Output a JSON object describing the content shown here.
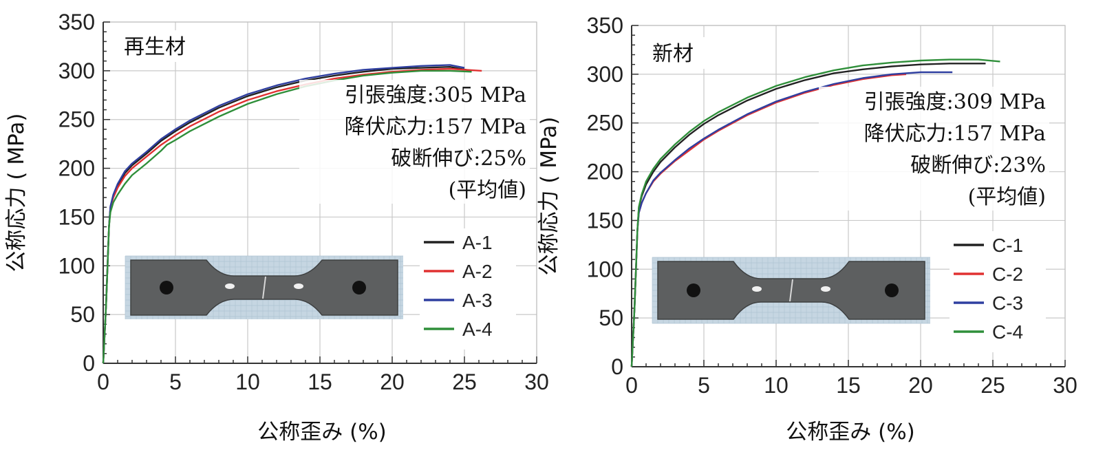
{
  "chart_data": [
    {
      "type": "line",
      "title": "再生材",
      "xlabel": "公称歪み (%)",
      "ylabel": "公称応力 ( MPa)",
      "xlim": [
        0,
        30
      ],
      "ylim": [
        0,
        350
      ],
      "xticks": [
        "0",
        "5",
        "10",
        "15",
        "20",
        "25",
        "30"
      ],
      "yticks": [
        "0",
        "50",
        "100",
        "150",
        "200",
        "250",
        "300",
        "350"
      ],
      "grid": true,
      "legend_position": "bottom-right",
      "annotations": [
        "引張強度:305 MPa",
        "降伏応力:157 MPa",
        "破断伸び:25%",
        "(平均値)"
      ],
      "inset": "specimen-photo",
      "series": [
        {
          "name": "A-1",
          "color": "#222222",
          "x": [
            0,
            0.2,
            0.3,
            0.4,
            0.5,
            0.7,
            1,
            1.5,
            2,
            3,
            4,
            5,
            6,
            8,
            10,
            12,
            14,
            16,
            18,
            20,
            22,
            24,
            25.5
          ],
          "y": [
            0,
            60,
            100,
            140,
            160,
            172,
            182,
            195,
            203,
            215,
            228,
            238,
            247,
            262,
            274,
            283,
            290,
            295,
            299,
            302,
            303,
            304,
            300
          ]
        },
        {
          "name": "A-2",
          "color": "#e03131",
          "x": [
            0,
            0.2,
            0.3,
            0.4,
            0.5,
            0.7,
            1,
            1.5,
            2,
            3,
            4,
            5,
            6,
            8,
            10,
            12,
            14,
            16,
            18,
            20,
            22,
            24,
            26.2
          ],
          "y": [
            0,
            60,
            100,
            140,
            160,
            170,
            180,
            192,
            200,
            212,
            224,
            234,
            243,
            258,
            270,
            279,
            286,
            292,
            296,
            299,
            301,
            302,
            300
          ]
        },
        {
          "name": "A-3",
          "color": "#2f3fa0",
          "x": [
            0,
            0.2,
            0.3,
            0.4,
            0.5,
            0.7,
            1,
            1.5,
            2,
            3,
            4,
            5,
            6,
            8,
            10,
            12,
            14,
            16,
            18,
            20,
            22,
            24,
            25
          ],
          "y": [
            0,
            60,
            100,
            140,
            161,
            173,
            184,
            197,
            205,
            217,
            230,
            240,
            249,
            264,
            276,
            285,
            292,
            297,
            301,
            303,
            305,
            306,
            303
          ]
        },
        {
          "name": "A-4",
          "color": "#2f8f3a",
          "x": [
            0,
            0.2,
            0.3,
            0.4,
            0.5,
            0.7,
            1,
            1.5,
            2,
            3,
            4,
            4.4,
            5,
            6,
            8,
            10,
            12,
            14,
            16,
            18,
            20,
            22,
            24,
            25.5
          ],
          "y": [
            0,
            60,
            100,
            140,
            155,
            165,
            173,
            184,
            193,
            205,
            218,
            224,
            229,
            238,
            253,
            266,
            276,
            284,
            290,
            295,
            298,
            300,
            300,
            299
          ]
        }
      ]
    },
    {
      "type": "line",
      "title": "新材",
      "xlabel": "公称歪み (%)",
      "ylabel": "公称応力 ( MPa)",
      "xlim": [
        0,
        30
      ],
      "ylim": [
        0,
        350
      ],
      "xticks": [
        "0",
        "5",
        "10",
        "15",
        "20",
        "25",
        "30"
      ],
      "yticks": [
        "0",
        "50",
        "100",
        "150",
        "200",
        "250",
        "300",
        "350"
      ],
      "grid": true,
      "legend_position": "bottom-right",
      "annotations": [
        "引張強度:309 MPa",
        "降伏応力:157 MPa",
        "破断伸び:23%",
        "(平均値)"
      ],
      "inset": "specimen-photo",
      "series": [
        {
          "name": "C-1",
          "color": "#222222",
          "x": [
            0,
            0.2,
            0.3,
            0.4,
            0.5,
            0.7,
            1,
            1.5,
            2,
            3,
            4,
            5,
            6,
            8,
            10,
            12,
            14,
            16,
            18,
            20,
            22,
            24.5
          ],
          "y": [
            0,
            60,
            100,
            140,
            163,
            175,
            187,
            200,
            210,
            225,
            238,
            249,
            258,
            273,
            285,
            294,
            301,
            305,
            308,
            310,
            311,
            311
          ]
        },
        {
          "name": "C-2",
          "color": "#e03131",
          "x": [
            0,
            0.2,
            0.3,
            0.4,
            0.5,
            0.7,
            1,
            1.5,
            2,
            3,
            4,
            5,
            6,
            8,
            10,
            12,
            14,
            16,
            18,
            19
          ],
          "y": [
            0,
            60,
            100,
            140,
            158,
            168,
            178,
            190,
            198,
            211,
            222,
            233,
            242,
            258,
            271,
            281,
            289,
            295,
            299,
            300
          ]
        },
        {
          "name": "C-3",
          "color": "#2f3fa0",
          "x": [
            0,
            0.2,
            0.3,
            0.4,
            0.5,
            0.7,
            1,
            1.5,
            2,
            3,
            4,
            5,
            6,
            8,
            10,
            12,
            14,
            16,
            18,
            20,
            22.2
          ],
          "y": [
            0,
            60,
            100,
            140,
            158,
            168,
            178,
            191,
            199,
            212,
            224,
            234,
            243,
            259,
            272,
            282,
            290,
            296,
            300,
            302,
            302
          ]
        },
        {
          "name": "C-4",
          "color": "#2f8f3a",
          "x": [
            0,
            0.2,
            0.3,
            0.4,
            0.5,
            0.7,
            1,
            1.5,
            2,
            3,
            4,
            5,
            6,
            8,
            10,
            12,
            14,
            16,
            18,
            20,
            22,
            24,
            25.5
          ],
          "y": [
            0,
            60,
            100,
            140,
            164,
            177,
            190,
            203,
            213,
            228,
            241,
            252,
            261,
            276,
            288,
            297,
            304,
            309,
            312,
            314,
            315,
            315,
            313
          ]
        }
      ]
    }
  ]
}
